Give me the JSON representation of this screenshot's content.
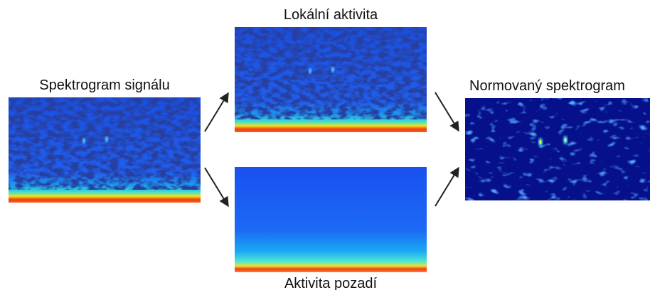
{
  "panels": {
    "input": {
      "label": "Spektrogram signálu"
    },
    "local": {
      "label": "Lokální aktivita"
    },
    "background": {
      "label": "Aktivita pozadí"
    },
    "output": {
      "label": "Normovaný spektrogram"
    }
  }
}
